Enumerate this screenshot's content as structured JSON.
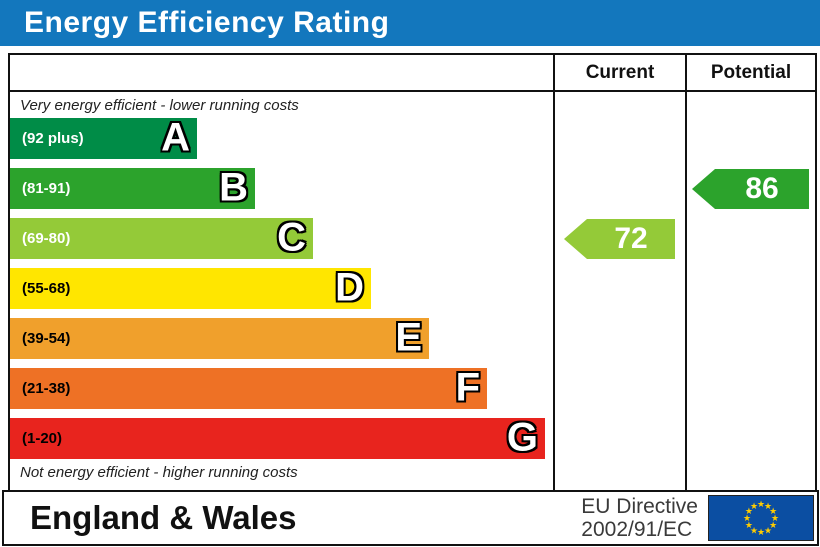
{
  "title": "Energy Efficiency Rating",
  "columns": {
    "current": "Current",
    "potential": "Potential"
  },
  "captions": {
    "top": "Very energy efficient - lower running costs",
    "bottom": "Not energy efficient - higher running costs"
  },
  "chart_data": {
    "type": "bar",
    "subtype": "epc-energy-efficiency-bands",
    "bands": [
      {
        "letter": "A",
        "range_label": "(92 plus)",
        "range": [
          92,
          100
        ],
        "color": "#008c47",
        "label_color": "#ffffff"
      },
      {
        "letter": "B",
        "range_label": "(81-91)",
        "range": [
          81,
          91
        ],
        "color": "#2ca32c",
        "label_color": "#ffffff"
      },
      {
        "letter": "C",
        "range_label": "(69-80)",
        "range": [
          69,
          80
        ],
        "color": "#94ca38",
        "label_color": "#ffffff"
      },
      {
        "letter": "D",
        "range_label": "(55-68)",
        "range": [
          55,
          68
        ],
        "color": "#ffe600",
        "label_color": "#000000"
      },
      {
        "letter": "E",
        "range_label": "(39-54)",
        "range": [
          39,
          54
        ],
        "color": "#f0a02c",
        "label_color": "#000000"
      },
      {
        "letter": "F",
        "range_label": "(21-38)",
        "range": [
          21,
          38
        ],
        "color": "#ee7125",
        "label_color": "#000000"
      },
      {
        "letter": "G",
        "range_label": "(1-20)",
        "range": [
          1,
          20
        ],
        "color": "#e8241e",
        "label_color": "#000000"
      }
    ],
    "current": {
      "value": 72,
      "band": "C",
      "color": "#94ca38"
    },
    "potential": {
      "value": 86,
      "band": "B",
      "color": "#2ca32c"
    }
  },
  "footer": {
    "region": "England & Wales",
    "directive_line1": "EU Directive",
    "directive_line2": "2002/91/EC",
    "flag": {
      "name": "eu-flag",
      "bg": "#0b4ea2",
      "star_color": "#ffcc00"
    }
  },
  "colors": {
    "title_bg": "#1377bd",
    "border": "#111111"
  }
}
